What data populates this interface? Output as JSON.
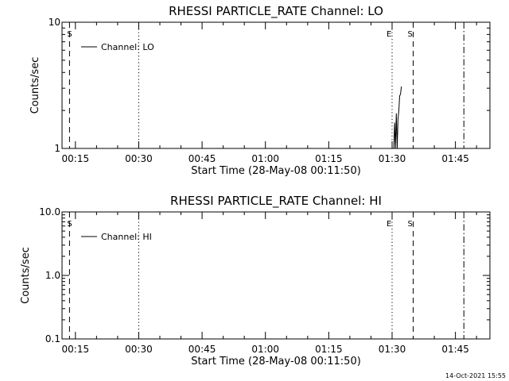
{
  "chart_data": [
    {
      "type": "line",
      "title": "RHESSI PARTICLE_RATE Channel: LO",
      "xlabel": "Start Time (28-May-08 00:11:50)",
      "ylabel": "Counts/sec",
      "x_ticks": [
        "00:15",
        "00:30",
        "00:45",
        "01:00",
        "01:15",
        "01:30",
        "01:45"
      ],
      "x_tick_minutes": [
        15,
        30,
        45,
        60,
        75,
        90,
        105
      ],
      "xlim_minutes": [
        11.83,
        113.17
      ],
      "y_scale": "log",
      "ylim": [
        1,
        10
      ],
      "y_ticks": [
        1,
        10
      ],
      "y_tick_labels": [
        "1",
        "10"
      ],
      "legend": "top-left",
      "series": [
        {
          "name": "Channel: LO",
          "x_minutes": [
            90.4,
            90.6,
            90.8,
            91.0,
            91.2,
            91.4,
            91.6,
            91.8,
            92.0,
            92.2
          ],
          "y": [
            1.0,
            1.6,
            1.0,
            1.9,
            1.0,
            1.7,
            2.0,
            2.6,
            2.7,
            3.1
          ]
        }
      ],
      "vertical_markers": [
        {
          "label": "S",
          "x_minutes": 13.6,
          "style": "dashed"
        },
        {
          "label": "",
          "x_minutes": 30.0,
          "style": "dotted"
        },
        {
          "label": "E",
          "x_minutes": 90.0,
          "style": "dotted"
        },
        {
          "label": "S",
          "x_minutes": 95.0,
          "style": "dashed"
        },
        {
          "label": "",
          "x_minutes": 107.0,
          "style": "dashdot"
        }
      ]
    },
    {
      "type": "line",
      "title": "RHESSI PARTICLE_RATE Channel: HI",
      "xlabel": "Start Time (28-May-08 00:11:50)",
      "ylabel": "Counts/sec",
      "x_ticks": [
        "00:15",
        "00:30",
        "00:45",
        "01:00",
        "01:15",
        "01:30",
        "01:45"
      ],
      "x_tick_minutes": [
        15,
        30,
        45,
        60,
        75,
        90,
        105
      ],
      "xlim_minutes": [
        11.83,
        113.17
      ],
      "y_scale": "log",
      "ylim": [
        0.1,
        10
      ],
      "y_ticks": [
        0.1,
        1.0,
        10.0
      ],
      "y_tick_labels": [
        "0.1",
        "1.0",
        "10.0"
      ],
      "legend": "top-left",
      "series": [
        {
          "name": "Channel: HI",
          "x_minutes": [],
          "y": []
        }
      ],
      "vertical_markers": [
        {
          "label": "S",
          "x_minutes": 13.6,
          "style": "dashed"
        },
        {
          "label": "",
          "x_minutes": 30.0,
          "style": "dotted"
        },
        {
          "label": "E",
          "x_minutes": 90.0,
          "style": "dotted"
        },
        {
          "label": "S",
          "x_minutes": 95.0,
          "style": "dashed"
        },
        {
          "label": "",
          "x_minutes": 107.0,
          "style": "dashdot"
        }
      ]
    }
  ],
  "footer": {
    "timestamp": "14-Oct-2021 15:55"
  }
}
